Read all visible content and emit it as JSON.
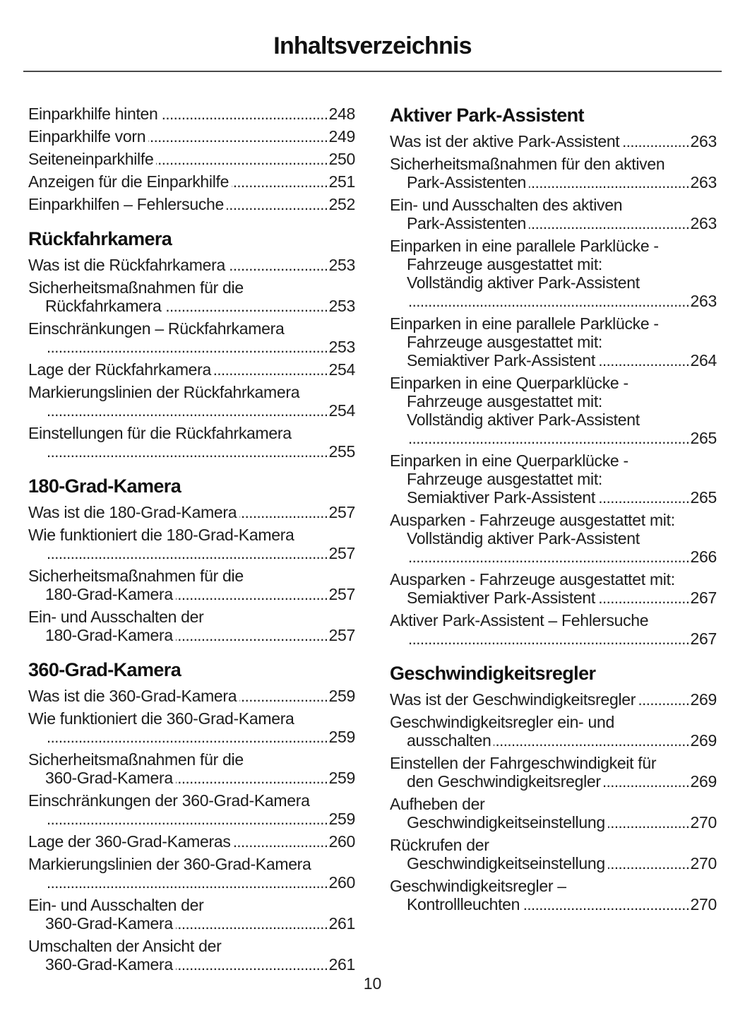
{
  "page_title": "Inhaltsverzeichnis",
  "page_number": "10",
  "colors": {
    "text": "#1c1c1c",
    "background": "#ffffff",
    "rule": "#4a4a4a"
  },
  "columns": [
    {
      "blocks": [
        {
          "title": null,
          "entries": [
            {
              "lines": [
                "Einparkhilfe hinten"
              ],
              "page": "248",
              "page_alone": false
            },
            {
              "lines": [
                "Einparkhilfe vorn"
              ],
              "page": "249",
              "page_alone": false
            },
            {
              "lines": [
                "Seiteneinparkhilfe"
              ],
              "page": "250",
              "page_alone": false
            },
            {
              "lines": [
                "Anzeigen für die Einparkhilfe"
              ],
              "page": "251",
              "page_alone": false
            },
            {
              "lines": [
                "Einparkhilfen – Fehlersuche"
              ],
              "page": "252",
              "page_alone": false
            }
          ]
        },
        {
          "title": "Rückfahrkamera",
          "entries": [
            {
              "lines": [
                "Was ist die Rückfahrkamera"
              ],
              "page": "253",
              "page_alone": false
            },
            {
              "lines": [
                "Sicherheitsmaßnahmen für die",
                "Rückfahrkamera"
              ],
              "page": "253",
              "page_alone": false
            },
            {
              "lines": [
                "Einschränkungen – Rückfahrkamera"
              ],
              "page": "253",
              "page_alone": true
            },
            {
              "lines": [
                "Lage der Rückfahrkamera"
              ],
              "page": "254",
              "page_alone": false
            },
            {
              "lines": [
                "Markierungslinien der Rückfahrkamera"
              ],
              "page": "254",
              "page_alone": true
            },
            {
              "lines": [
                "Einstellungen für die Rückfahrkamera"
              ],
              "page": "255",
              "page_alone": true
            }
          ]
        },
        {
          "title": "180-Grad-Kamera",
          "entries": [
            {
              "lines": [
                "Was ist die 180-Grad-Kamera"
              ],
              "page": "257",
              "page_alone": false
            },
            {
              "lines": [
                "Wie funktioniert die 180-Grad-Kamera"
              ],
              "page": "257",
              "page_alone": true
            },
            {
              "lines": [
                "Sicherheitsmaßnahmen für die",
                "180-Grad-Kamera"
              ],
              "page": "257",
              "page_alone": false
            },
            {
              "lines": [
                "Ein- und Ausschalten der",
                "180-Grad-Kamera"
              ],
              "page": "257",
              "page_alone": false
            }
          ]
        },
        {
          "title": "360-Grad-Kamera",
          "entries": [
            {
              "lines": [
                "Was ist die 360-Grad-Kamera"
              ],
              "page": "259",
              "page_alone": false
            },
            {
              "lines": [
                "Wie funktioniert die 360-Grad-Kamera"
              ],
              "page": "259",
              "page_alone": true
            },
            {
              "lines": [
                "Sicherheitsmaßnahmen für die",
                "360-Grad-Kamera"
              ],
              "page": "259",
              "page_alone": false
            },
            {
              "lines": [
                "Einschränkungen der 360-Grad-Kamera"
              ],
              "page": "259",
              "page_alone": true
            },
            {
              "lines": [
                "Lage der 360-Grad-Kameras"
              ],
              "page": "260",
              "page_alone": false
            },
            {
              "lines": [
                "Markierungslinien der 360-Grad-Kamera"
              ],
              "page": "260",
              "page_alone": true
            },
            {
              "lines": [
                "Ein- und Ausschalten der",
                "360-Grad-Kamera"
              ],
              "page": "261",
              "page_alone": false
            },
            {
              "lines": [
                "Umschalten der Ansicht der",
                "360-Grad-Kamera"
              ],
              "page": "261",
              "page_alone": false
            }
          ]
        }
      ]
    },
    {
      "blocks": [
        {
          "title": "Aktiver Park-Assistent",
          "entries": [
            {
              "lines": [
                "Was ist der aktive Park-Assistent"
              ],
              "page": "263",
              "page_alone": false
            },
            {
              "lines": [
                "Sicherheitsmaßnahmen für den aktiven",
                "Park-Assistenten"
              ],
              "page": "263",
              "page_alone": false
            },
            {
              "lines": [
                "Ein- und Ausschalten des aktiven",
                "Park-Assistenten"
              ],
              "page": "263",
              "page_alone": false
            },
            {
              "lines": [
                "Einparken in eine parallele Parklücke -",
                "Fahrzeuge ausgestattet mit:",
                "Vollständig aktiver Park-Assistent"
              ],
              "page": "263",
              "page_alone": true
            },
            {
              "lines": [
                "Einparken in eine parallele Parklücke -",
                "Fahrzeuge ausgestattet mit:",
                "Semiaktiver Park-Assistent"
              ],
              "page": "264",
              "page_alone": false
            },
            {
              "lines": [
                "Einparken in eine Querparklücke -",
                "Fahrzeuge ausgestattet mit:",
                "Vollständig aktiver Park-Assistent"
              ],
              "page": "265",
              "page_alone": true
            },
            {
              "lines": [
                "Einparken in eine Querparklücke -",
                "Fahrzeuge ausgestattet mit:",
                "Semiaktiver Park-Assistent"
              ],
              "page": "265",
              "page_alone": false
            },
            {
              "lines": [
                "Ausparken - Fahrzeuge ausgestattet mit:",
                "Vollständig aktiver Park-Assistent"
              ],
              "page": "266",
              "page_alone": true
            },
            {
              "lines": [
                "Ausparken - Fahrzeuge ausgestattet mit:",
                "Semiaktiver Park-Assistent"
              ],
              "page": "267",
              "page_alone": false
            },
            {
              "lines": [
                "Aktiver Park-Assistent – Fehlersuche"
              ],
              "page": "267",
              "page_alone": true
            }
          ]
        },
        {
          "title": "Geschwindigkeitsregler",
          "entries": [
            {
              "lines": [
                "Was ist der Geschwindigkeitsregler"
              ],
              "page": "269",
              "page_alone": false
            },
            {
              "lines": [
                "Geschwindigkeitsregler ein- und",
                "ausschalten"
              ],
              "page": "269",
              "page_alone": false
            },
            {
              "lines": [
                "Einstellen der Fahrgeschwindigkeit für",
                "den Geschwindigkeitsregler"
              ],
              "page": "269",
              "page_alone": false
            },
            {
              "lines": [
                "Aufheben der",
                "Geschwindigkeitseinstellung"
              ],
              "page": "270",
              "page_alone": false
            },
            {
              "lines": [
                "Rückrufen der",
                "Geschwindigkeitseinstellung"
              ],
              "page": "270",
              "page_alone": false
            },
            {
              "lines": [
                "Geschwindigkeitsregler –",
                "Kontrollleuchten"
              ],
              "page": "270",
              "page_alone": false
            }
          ]
        }
      ]
    }
  ]
}
